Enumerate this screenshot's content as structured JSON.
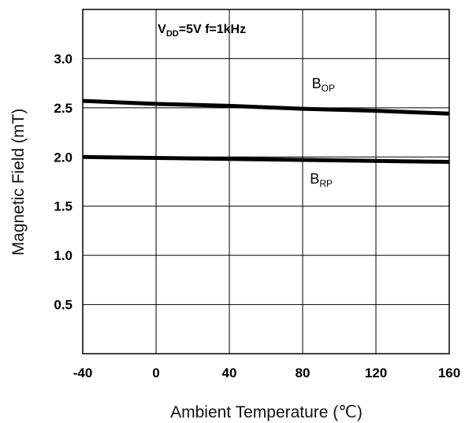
{
  "chart_data": {
    "type": "line",
    "title": "",
    "xlabel": "Ambient Temperature (℃)",
    "ylabel": "Magnetic Field (mT)",
    "xlim": [
      -40,
      160
    ],
    "ylim": [
      0,
      3.5
    ],
    "x_ticks": [
      -40,
      0,
      40,
      80,
      120,
      160
    ],
    "x_tick_labels": [
      "-40",
      "0",
      "40",
      "80",
      "120",
      "160"
    ],
    "y_ticks": [
      0.5,
      1.0,
      1.5,
      2.0,
      2.5,
      3.0
    ],
    "y_tick_labels": [
      "0.5",
      "1.0",
      "1.5",
      "2.0",
      "2.5",
      "3.0"
    ],
    "grid": true,
    "condition": {
      "v_main": "V",
      "v_sub": "DD",
      "rest": "=5V f=1kHz"
    },
    "series": [
      {
        "name": "BOP",
        "label_main": "B",
        "label_sub": "OP",
        "color": "#000000",
        "x": [
          -40,
          0,
          40,
          80,
          120,
          160
        ],
        "y": [
          2.57,
          2.54,
          2.52,
          2.49,
          2.47,
          2.44
        ]
      },
      {
        "name": "BRP",
        "label_main": "B",
        "label_sub": "RP",
        "color": "#000000",
        "x": [
          -40,
          0,
          40,
          80,
          120,
          160
        ],
        "y": [
          2.0,
          1.99,
          1.98,
          1.97,
          1.96,
          1.95
        ]
      }
    ]
  }
}
